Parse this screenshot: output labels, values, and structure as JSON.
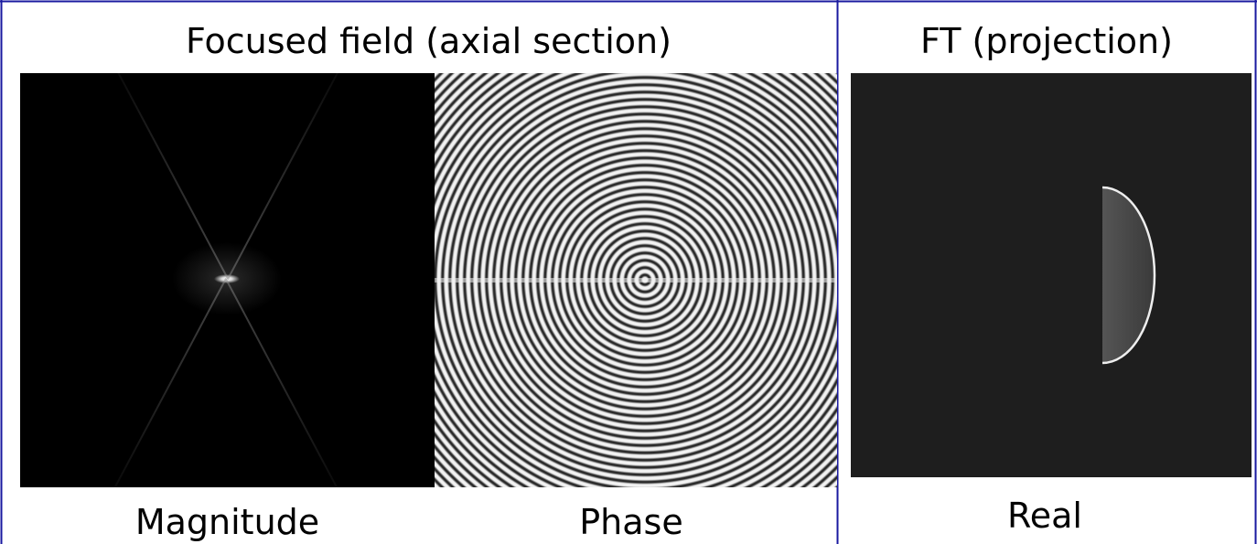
{
  "left_panel": {
    "title": "Focused field (axial section)",
    "images": [
      {
        "label": "Magnitude"
      },
      {
        "label": "Phase"
      }
    ]
  },
  "right_panel": {
    "title": "FT (projection)",
    "images": [
      {
        "label": "Real"
      }
    ]
  }
}
